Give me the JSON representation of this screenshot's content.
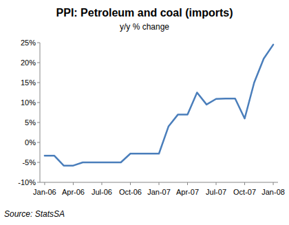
{
  "chart_data": {
    "type": "line",
    "title": "PPI: Petroleum and coal (imports)",
    "subtitle": "y/y % change",
    "source": "Source: StatsSA",
    "categories": [
      "Jan-06",
      null,
      null,
      "Apr-06",
      null,
      null,
      "Jul-06",
      null,
      null,
      "Oct-06",
      null,
      null,
      "Jan-07",
      null,
      null,
      "Apr-07",
      null,
      null,
      "Jul-07",
      null,
      null,
      "Oct-07",
      null,
      null,
      "Jan-08"
    ],
    "values": [
      -3.3,
      -3.3,
      -5.8,
      -5.8,
      -5,
      -5,
      -5,
      -5,
      -5,
      -2.8,
      -2.8,
      -2.8,
      -2.8,
      4,
      7,
      7,
      12.5,
      9.5,
      10.9,
      11,
      11,
      6,
      15,
      21,
      24.5
    ],
    "color": "#4a7ebb",
    "ylim": [
      -10,
      25
    ],
    "yticks": [
      {
        "value": -10,
        "label": "-10%"
      },
      {
        "value": -5,
        "label": "-5%"
      },
      {
        "value": 0,
        "label": "0%"
      },
      {
        "value": 5,
        "label": "5%"
      },
      {
        "value": 10,
        "label": "10%"
      },
      {
        "value": 15,
        "label": "15%"
      },
      {
        "value": 20,
        "label": "20%"
      },
      {
        "value": 25,
        "label": "25%"
      }
    ],
    "grid": false
  }
}
